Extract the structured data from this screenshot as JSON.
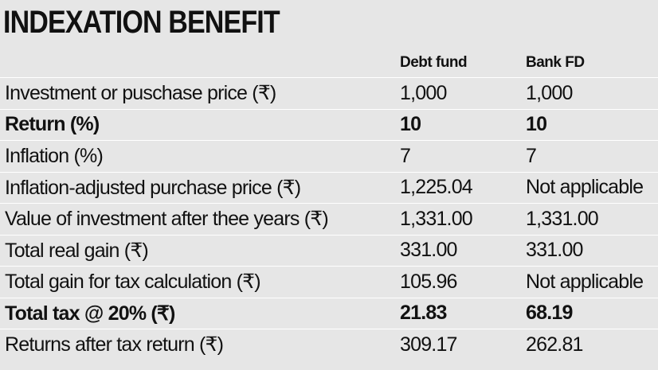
{
  "header": {
    "title": "INDEXATION BENEFIT"
  },
  "table": {
    "columns": [
      "Debt fund",
      "Bank FD"
    ],
    "rows": [
      [
        "Investment or puschase price (₹)",
        "1,000",
        "1,000"
      ],
      [
        "Return (%)",
        "10",
        "10"
      ],
      [
        "Inflation (%)",
        "7",
        "7"
      ],
      [
        "Inflation-adjusted purchase price (₹)",
        "1,225.04",
        "Not applicable"
      ],
      [
        "Value of investment after thee years (₹)",
        "1,331.00",
        "1,331.00"
      ],
      [
        "Total real gain (₹)",
        "331.00",
        "331.00"
      ],
      [
        "Total gain for tax calculation (₹)",
        "105.96",
        "Not applicable"
      ],
      [
        "Total tax @ 20% (₹)",
        "21.83",
        "68.19"
      ],
      [
        "Returns after tax return (₹)",
        "309.17",
        "262.81"
      ]
    ]
  }
}
